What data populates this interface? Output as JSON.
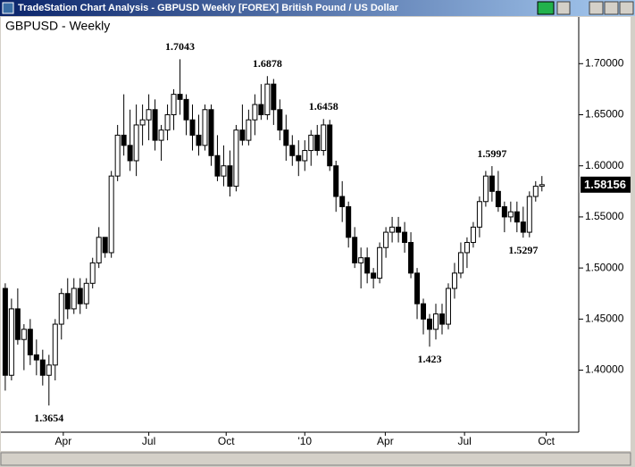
{
  "window": {
    "title": "TradeStation Chart Analysis - GBPUSD Weekly [FOREX] British Pound / US Dollar"
  },
  "chart_data": {
    "type": "candlestick",
    "title": "GBPUSD - Weekly",
    "open": [
      1.48,
      1.395,
      1.46,
      1.43,
      1.44,
      1.415,
      1.41,
      1.395,
      1.405,
      1.445,
      1.475,
      1.46,
      1.48,
      1.465,
      1.485,
      1.505,
      1.53,
      1.515,
      1.59,
      1.63,
      1.62,
      1.605,
      1.64,
      1.645,
      1.655,
      1.625,
      1.635,
      1.65,
      1.67,
      1.665,
      1.645,
      1.63,
      1.62,
      1.655,
      1.61,
      1.59,
      1.6,
      1.58,
      1.635,
      1.625,
      1.645,
      1.66,
      1.65,
      1.68,
      1.655,
      1.635,
      1.62,
      1.61,
      1.605,
      1.615,
      1.63,
      1.615,
      1.64,
      1.6,
      1.57,
      1.56,
      1.53,
      1.505,
      1.51,
      1.495,
      1.49,
      1.52,
      1.535,
      1.54,
      1.535,
      1.525,
      1.495,
      1.465,
      1.45,
      1.44,
      1.455,
      1.445,
      1.48,
      1.495,
      1.515,
      1.525,
      1.54,
      1.565,
      1.59,
      1.575,
      1.56,
      1.55,
      1.555,
      1.545,
      1.535,
      1.57,
      1.58
    ],
    "high": [
      1.485,
      1.47,
      1.48,
      1.445,
      1.45,
      1.43,
      1.42,
      1.415,
      1.45,
      1.48,
      1.49,
      1.49,
      1.49,
      1.49,
      1.51,
      1.54,
      1.53,
      1.595,
      1.64,
      1.67,
      1.655,
      1.66,
      1.66,
      1.67,
      1.665,
      1.64,
      1.66,
      1.675,
      1.7043,
      1.67,
      1.66,
      1.65,
      1.66,
      1.66,
      1.63,
      1.62,
      1.615,
      1.64,
      1.66,
      1.655,
      1.67,
      1.68,
      1.6878,
      1.685,
      1.665,
      1.65,
      1.63,
      1.625,
      1.625,
      1.635,
      1.64,
      1.6458,
      1.645,
      1.605,
      1.585,
      1.565,
      1.54,
      1.52,
      1.52,
      1.5,
      1.525,
      1.54,
      1.55,
      1.55,
      1.545,
      1.535,
      1.5,
      1.47,
      1.455,
      1.465,
      1.465,
      1.485,
      1.505,
      1.525,
      1.53,
      1.545,
      1.57,
      1.595,
      1.5997,
      1.595,
      1.565,
      1.565,
      1.565,
      1.56,
      1.575,
      1.585,
      1.59
    ],
    "low": [
      1.38,
      1.39,
      1.425,
      1.4,
      1.405,
      1.395,
      1.385,
      1.3654,
      1.39,
      1.43,
      1.45,
      1.455,
      1.455,
      1.46,
      1.48,
      1.5,
      1.51,
      1.51,
      1.585,
      1.61,
      1.595,
      1.59,
      1.62,
      1.625,
      1.615,
      1.605,
      1.625,
      1.635,
      1.65,
      1.63,
      1.615,
      1.61,
      1.615,
      1.6,
      1.585,
      1.58,
      1.57,
      1.575,
      1.62,
      1.62,
      1.63,
      1.645,
      1.645,
      1.64,
      1.625,
      1.605,
      1.6,
      1.59,
      1.595,
      1.6,
      1.61,
      1.61,
      1.595,
      1.555,
      1.545,
      1.52,
      1.5,
      1.48,
      1.485,
      1.48,
      1.485,
      1.51,
      1.525,
      1.525,
      1.515,
      1.49,
      1.45,
      1.435,
      1.423,
      1.43,
      1.435,
      1.44,
      1.47,
      1.49,
      1.5,
      1.52,
      1.53,
      1.56,
      1.565,
      1.555,
      1.535,
      1.545,
      1.535,
      1.5297,
      1.53,
      1.565,
      1.575
    ],
    "close": [
      1.395,
      1.46,
      1.43,
      1.44,
      1.415,
      1.41,
      1.395,
      1.405,
      1.445,
      1.475,
      1.46,
      1.48,
      1.465,
      1.485,
      1.505,
      1.53,
      1.515,
      1.59,
      1.63,
      1.62,
      1.605,
      1.64,
      1.645,
      1.655,
      1.625,
      1.635,
      1.65,
      1.67,
      1.665,
      1.645,
      1.63,
      1.62,
      1.655,
      1.61,
      1.59,
      1.6,
      1.58,
      1.635,
      1.625,
      1.645,
      1.66,
      1.65,
      1.68,
      1.655,
      1.635,
      1.62,
      1.61,
      1.605,
      1.615,
      1.63,
      1.615,
      1.64,
      1.6,
      1.57,
      1.56,
      1.53,
      1.505,
      1.51,
      1.495,
      1.49,
      1.52,
      1.535,
      1.54,
      1.535,
      1.525,
      1.495,
      1.465,
      1.45,
      1.44,
      1.455,
      1.445,
      1.48,
      1.495,
      1.515,
      1.525,
      1.54,
      1.565,
      1.59,
      1.575,
      1.56,
      1.55,
      1.555,
      1.545,
      1.535,
      1.57,
      1.58,
      1.58156
    ],
    "xlim": [
      -0.7,
      91.9
    ],
    "xticks": [
      {
        "value": 9.3,
        "label": "Apr"
      },
      {
        "value": 23,
        "label": "Jul"
      },
      {
        "value": 35.4,
        "label": "Oct"
      },
      {
        "value": 48,
        "label": "'10"
      },
      {
        "value": 60.9,
        "label": "Apr"
      },
      {
        "value": 73.6,
        "label": "Jul"
      },
      {
        "value": 86.7,
        "label": "Oct"
      }
    ],
    "ylim": [
      1.3393,
      1.7457
    ],
    "yticks": [
      {
        "value": 1.4,
        "label": "1.40000"
      },
      {
        "value": 1.45,
        "label": "1.45000"
      },
      {
        "value": 1.5,
        "label": "1.50000"
      },
      {
        "value": 1.55,
        "label": "1.55000"
      },
      {
        "value": 1.6,
        "label": "1.60000"
      },
      {
        "value": 1.65,
        "label": "1.65000"
      },
      {
        "value": 1.7,
        "label": "1.70000"
      }
    ],
    "up_color": "#ffffff",
    "down_color": "#000000"
  }
}
